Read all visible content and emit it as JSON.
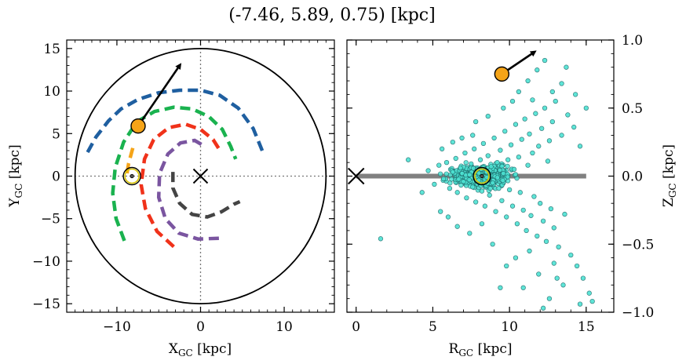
{
  "figure": {
    "title": "(-7.46, 5.89, 0.75) [kpc]"
  },
  "chart_data": [
    {
      "type": "scatter",
      "panel": "galactic-plane-xy",
      "xlabel": "X_GC [kpc]",
      "ylabel": "Y_GC [kpc]",
      "xlim": [
        -16,
        16
      ],
      "ylim": [
        -16,
        16
      ],
      "xticks": [
        -10,
        0,
        10
      ],
      "xtick_labels": [
        "−10",
        "0",
        "10"
      ],
      "yticks": [
        15,
        10,
        5,
        0,
        -5,
        -10,
        -15
      ],
      "ytick_labels": [
        "15",
        "10",
        "5",
        "0",
        "−5",
        "−10",
        "−15"
      ],
      "grid": "dotted lines at x=0 and y=0",
      "outer_circle_radius": 15,
      "galactic_center": {
        "x": 0,
        "y": 0,
        "marker": "x"
      },
      "sun": {
        "x": -8.2,
        "y": 0,
        "marker": "sun-symbol"
      },
      "object": {
        "x": -7.46,
        "y": 5.89,
        "color": "#f5a418"
      },
      "velocity_arrow": {
        "from": [
          -7.46,
          5.89
        ],
        "to": [
          -2.5,
          13.0
        ]
      },
      "spiral_arms": [
        {
          "color": "#1f5fa0",
          "points": [
            [
              -13.5,
              2.8
            ],
            [
              -12.5,
              4.6
            ],
            [
              -11,
              6.5
            ],
            [
              -9.5,
              7.9
            ],
            [
              -7.5,
              9.0
            ],
            [
              -5,
              9.8
            ],
            [
              -2.5,
              10.1
            ],
            [
              0,
              10.1
            ],
            [
              2.3,
              9.5
            ],
            [
              4.5,
              8.0
            ],
            [
              6.3,
              5.6
            ],
            [
              7.5,
              2.7
            ]
          ]
        },
        {
          "color": "#1ab24f",
          "points": [
            [
              -9.1,
              -7.6
            ],
            [
              -10.1,
              -5
            ],
            [
              -10.5,
              -2
            ],
            [
              -10.2,
              1
            ],
            [
              -9.2,
              4
            ],
            [
              -7.6,
              6.4
            ],
            [
              -5.5,
              7.6
            ],
            [
              -3.2,
              8.1
            ],
            [
              -1,
              7.9
            ],
            [
              1,
              7
            ],
            [
              2.6,
              5.5
            ],
            [
              3.6,
              3.5
            ],
            [
              4.2,
              2
            ]
          ]
        },
        {
          "color": "#f0321a",
          "points": [
            [
              -3.2,
              -8.3
            ],
            [
              -5.2,
              -6.5
            ],
            [
              -6.6,
              -3.8
            ],
            [
              -7.1,
              -1
            ],
            [
              -6.7,
              2
            ],
            [
              -5.6,
              4.3
            ],
            [
              -3.8,
              5.7
            ],
            [
              -1.8,
              6.1
            ],
            [
              0,
              5.5
            ],
            [
              1.5,
              4.3
            ],
            [
              2.4,
              2.9
            ]
          ]
        },
        {
          "color": "#7a55a0",
          "points": [
            [
              2.2,
              -7.3
            ],
            [
              -0.3,
              -7.4
            ],
            [
              -2.6,
              -6.7
            ],
            [
              -4.2,
              -5
            ],
            [
              -5,
              -2.5
            ],
            [
              -4.9,
              0.3
            ],
            [
              -3.9,
              2.6
            ],
            [
              -2.4,
              3.9
            ],
            [
              -0.7,
              4.2
            ],
            [
              0.5,
              3.5
            ]
          ]
        },
        {
          "color": "#f5a418",
          "points": [
            [
              -8.1,
              3.3
            ],
            [
              -8.6,
              1.5
            ],
            [
              -8.8,
              0.3
            ]
          ]
        },
        {
          "color": "#444444",
          "points": [
            [
              -3.3,
              0.5
            ],
            [
              -3.3,
              -1.4
            ],
            [
              -2.5,
              -3.2
            ],
            [
              -1,
              -4.5
            ],
            [
              0.8,
              -4.8
            ],
            [
              2.5,
              -4.2
            ],
            [
              4,
              -3.3
            ],
            [
              4.7,
              -3
            ]
          ]
        }
      ]
    },
    {
      "type": "scatter",
      "panel": "r-z",
      "xlabel": "R_GC [kpc]",
      "ylabel": "Z_GC [kpc]",
      "xlim": [
        -0.6,
        16.8
      ],
      "ylim": [
        -1.0,
        1.0
      ],
      "xticks": [
        0,
        5,
        10,
        15
      ],
      "xtick_labels": [
        "0",
        "5",
        "10",
        "15"
      ],
      "yticks": [
        1.0,
        0.5,
        0.0,
        -0.5,
        -1.0
      ],
      "ytick_labels": [
        "1.0",
        "0.5",
        "0.0",
        "−0.5",
        "−1.0"
      ],
      "ytick_side": "right",
      "galactic_plane": {
        "z": 0.0,
        "x_range": [
          0,
          15
        ],
        "color": "#808080"
      },
      "galactic_center": {
        "x": 0,
        "y": 0,
        "marker": "x"
      },
      "sun": {
        "x": 8.2,
        "y": 0,
        "marker": "sun-symbol"
      },
      "object": {
        "x": 9.5,
        "y": 0.75,
        "color": "#f5a418"
      },
      "velocity_arrow": {
        "from": [
          9.5,
          0.75
        ],
        "to": [
          11.6,
          0.91
        ]
      },
      "stars": {
        "color": "#4de3d3",
        "edge": "#1f6f6f",
        "points": [
          [
            4.7,
            0.04
          ],
          [
            5.1,
            -0.06
          ],
          [
            5.4,
            0.08
          ],
          [
            5.7,
            -0.02
          ],
          [
            5.9,
            0.1
          ],
          [
            6.1,
            -0.09
          ],
          [
            6.3,
            0.03
          ],
          [
            6.5,
            0.13
          ],
          [
            6.6,
            -0.12
          ],
          [
            6.8,
            0.06
          ],
          [
            7.0,
            -0.04
          ],
          [
            7.1,
            0.17
          ],
          [
            7.2,
            -0.16
          ],
          [
            7.4,
            0.01
          ],
          [
            7.5,
            0.09
          ],
          [
            7.6,
            -0.08
          ],
          [
            7.7,
            0.2
          ],
          [
            7.8,
            -0.19
          ],
          [
            7.9,
            0.05
          ],
          [
            8.0,
            -0.03
          ],
          [
            8.1,
            0.12
          ],
          [
            8.2,
            -0.11
          ],
          [
            8.3,
            0.24
          ],
          [
            8.4,
            -0.22
          ],
          [
            8.5,
            0.03
          ],
          [
            8.6,
            0.15
          ],
          [
            8.7,
            -0.14
          ],
          [
            8.8,
            0.07
          ],
          [
            8.9,
            -0.05
          ],
          [
            9.0,
            0.28
          ],
          [
            9.1,
            -0.26
          ],
          [
            9.2,
            0.1
          ],
          [
            9.3,
            -0.09
          ],
          [
            9.4,
            0.19
          ],
          [
            9.5,
            -0.18
          ],
          [
            9.6,
            0.02
          ],
          [
            9.7,
            0.33
          ],
          [
            9.8,
            -0.3
          ],
          [
            9.9,
            0.12
          ],
          [
            10.0,
            -0.1
          ],
          [
            10.1,
            0.23
          ],
          [
            10.2,
            -0.22
          ],
          [
            10.3,
            0.05
          ],
          [
            10.4,
            0.38
          ],
          [
            10.5,
            -0.35
          ],
          [
            10.6,
            0.14
          ],
          [
            10.7,
            -0.12
          ],
          [
            10.8,
            0.27
          ],
          [
            10.9,
            -0.25
          ],
          [
            11.0,
            0.42
          ],
          [
            11.1,
            -0.4
          ],
          [
            11.2,
            0.08
          ],
          [
            11.3,
            0.31
          ],
          [
            11.4,
            -0.29
          ],
          [
            11.5,
            0.17
          ],
          [
            11.6,
            -0.15
          ],
          [
            11.7,
            0.46
          ],
          [
            11.8,
            -0.44
          ],
          [
            11.9,
            0.22
          ],
          [
            12.0,
            -0.2
          ],
          [
            12.1,
            0.35
          ],
          [
            12.2,
            -0.33
          ],
          [
            12.3,
            0.5
          ],
          [
            12.4,
            -0.48
          ],
          [
            12.5,
            0.11
          ],
          [
            12.6,
            0.26
          ],
          [
            12.7,
            -0.24
          ],
          [
            12.8,
            0.4
          ],
          [
            12.9,
            -0.38
          ],
          [
            13.0,
            0.55
          ],
          [
            13.2,
            -0.52
          ],
          [
            13.4,
            0.3
          ],
          [
            13.6,
            -0.28
          ],
          [
            13.8,
            0.45
          ],
          [
            14.0,
            -0.58
          ],
          [
            14.2,
            0.36
          ],
          [
            14.4,
            -0.66
          ],
          [
            14.6,
            0.22
          ],
          [
            14.8,
            -0.75
          ],
          [
            15.0,
            0.5
          ],
          [
            15.2,
            -0.86
          ],
          [
            15.4,
            -0.92
          ],
          [
            13.1,
            -0.75
          ],
          [
            12.6,
            -0.9
          ],
          [
            11.3,
            -0.55
          ],
          [
            10.4,
            -0.6
          ],
          [
            9.8,
            -0.66
          ],
          [
            8.9,
            -0.5
          ],
          [
            7.4,
            -0.42
          ],
          [
            6.6,
            -0.37
          ],
          [
            6.0,
            -0.3
          ],
          [
            5.5,
            -0.26
          ],
          [
            4.3,
            -0.12
          ],
          [
            3.4,
            0.12
          ],
          [
            1.6,
            -0.46
          ],
          [
            10.6,
            0.62
          ],
          [
            11.2,
            0.7
          ],
          [
            11.8,
            0.78
          ],
          [
            12.3,
            0.85
          ],
          [
            12.8,
            0.62
          ],
          [
            10.2,
            0.55
          ],
          [
            9.6,
            0.5
          ],
          [
            8.6,
            0.44
          ],
          [
            7.8,
            0.4
          ],
          [
            13.4,
            0.68
          ],
          [
            13.7,
            0.8
          ],
          [
            14.3,
            0.6
          ],
          [
            11.5,
            0.56
          ],
          [
            12.9,
            -0.64
          ],
          [
            11.9,
            -0.72
          ],
          [
            13.5,
            -0.8
          ],
          [
            14.6,
            -0.94
          ],
          [
            10.9,
            -0.82
          ],
          [
            12.2,
            -0.97
          ],
          [
            9.4,
            -0.82
          ],
          [
            8.2,
            -0.35
          ],
          [
            7.6,
            0.3
          ],
          [
            6.9,
            0.28
          ],
          [
            6.3,
            0.25
          ],
          [
            5.6,
            0.2
          ]
        ]
      }
    }
  ]
}
